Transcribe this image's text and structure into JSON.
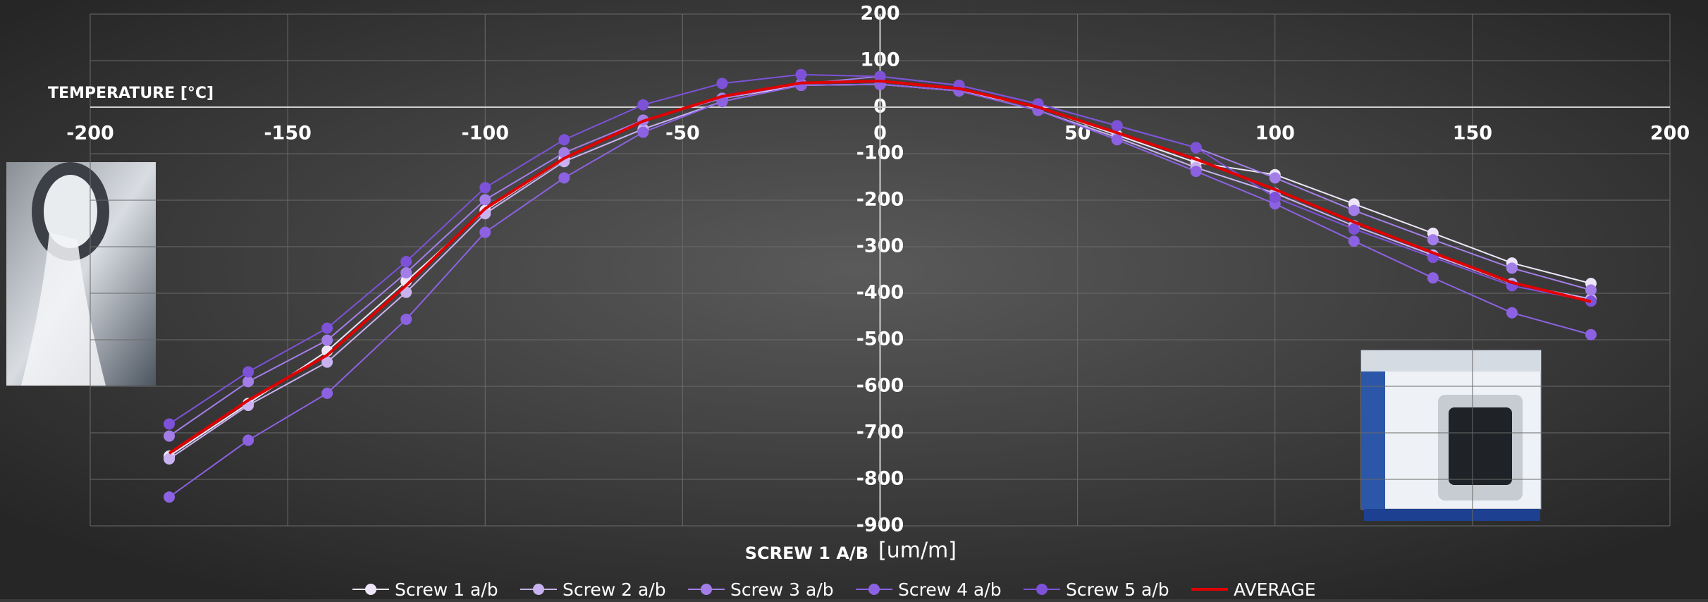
{
  "chart_data": {
    "type": "line",
    "x_label": "TEMPERATURE [°C]",
    "y_label": "SCREW 1 A/B",
    "y_unit": "[um/m]",
    "x": [
      -180,
      -160,
      -140,
      -120,
      -100,
      -80,
      -60,
      -40,
      -20,
      0,
      20,
      40,
      60,
      80,
      100,
      120,
      140,
      160,
      180
    ],
    "series": [
      {
        "name": "Screw 1 a/b",
        "color": "#eee6f8",
        "markers": true,
        "values": [
          -750,
          -637,
          -524,
          -374,
          -222,
          -112,
          -28,
          19,
          47,
          49,
          35,
          0,
          -60,
          -119,
          -145,
          -208,
          -271,
          -335,
          -379
        ]
      },
      {
        "name": "Screw 2 a/b",
        "color": "#c9b2f0",
        "markers": true,
        "values": [
          -756,
          -641,
          -548,
          -398,
          -229,
          -117,
          -47,
          12,
          47,
          49,
          35,
          -7,
          -65,
          -130,
          -185,
          -255,
          -318,
          -379,
          -412
        ]
      },
      {
        "name": "Screw 3 a/b",
        "color": "#a47ee8",
        "markers": true,
        "values": [
          -707,
          -590,
          -501,
          -356,
          -199,
          -98,
          -28,
          19,
          50,
          66,
          47,
          7,
          -40,
          -87,
          -152,
          -222,
          -285,
          -346,
          -393
        ]
      },
      {
        "name": "Screw 4 a/b",
        "color": "#8c62e2",
        "markers": true,
        "values": [
          -838,
          -716,
          -615,
          -456,
          -269,
          -152,
          -54,
          12,
          47,
          49,
          35,
          -7,
          -70,
          -138,
          -208,
          -288,
          -367,
          -442,
          -489
        ]
      },
      {
        "name": "Screw 5 a/b",
        "color": "#7d52d8",
        "markers": true,
        "values": [
          -681,
          -569,
          -475,
          -332,
          -173,
          -70,
          5,
          51,
          70,
          66,
          47,
          7,
          -40,
          -87,
          -194,
          -262,
          -323,
          -384,
          -417
        ]
      },
      {
        "name": "AVERAGE",
        "color": "#e00000",
        "markers": false,
        "values": [
          -744,
          -630,
          -533,
          -383,
          -218,
          -110,
          -30,
          23,
          52,
          56,
          40,
          0,
          -55,
          -112,
          -177,
          -247,
          -313,
          -377,
          -418
        ]
      }
    ],
    "xlim": [
      -200,
      200
    ],
    "xticks": [
      -200,
      -150,
      -100,
      -50,
      0,
      50,
      100,
      150,
      200
    ],
    "ylim": [
      -900,
      200
    ],
    "yticks": [
      200,
      100,
      0,
      -100,
      -200,
      -300,
      -400,
      -500,
      -600,
      -700,
      -800,
      -900
    ],
    "grid": true,
    "legend": "bottom"
  }
}
